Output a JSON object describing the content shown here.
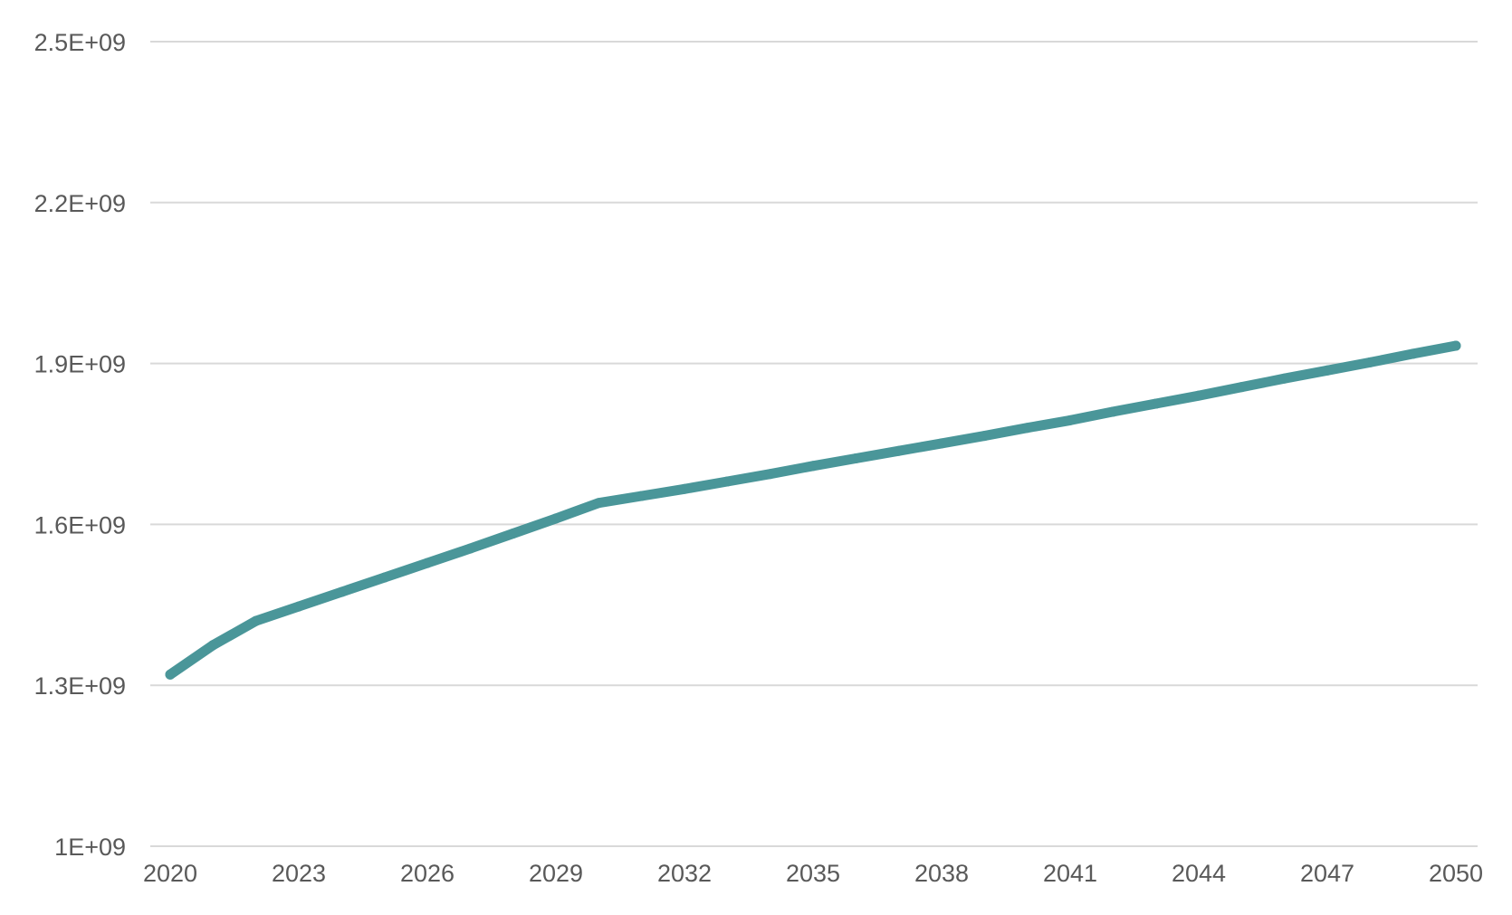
{
  "chart_data": {
    "type": "line",
    "title": "",
    "xlabel": "",
    "ylabel": "",
    "x": [
      2020,
      2021,
      2022,
      2023,
      2024,
      2025,
      2026,
      2027,
      2028,
      2029,
      2030,
      2031,
      2032,
      2033,
      2034,
      2035,
      2036,
      2037,
      2038,
      2039,
      2040,
      2041,
      2042,
      2043,
      2044,
      2045,
      2046,
      2047,
      2048,
      2049,
      2050
    ],
    "x_ticks": [
      2020,
      2023,
      2026,
      2029,
      2032,
      2035,
      2038,
      2041,
      2044,
      2047,
      2050
    ],
    "x_tick_labels": [
      "2020",
      "2023",
      "2026",
      "2029",
      "2032",
      "2035",
      "2038",
      "2041",
      "2044",
      "2047",
      "2050"
    ],
    "y_ticks": [
      1000000000,
      1300000000,
      1600000000,
      1900000000,
      2200000000,
      2500000000
    ],
    "y_tick_labels": [
      "1E+09",
      "1.3E+09",
      "1.6E+09",
      "1.9E+09",
      "2.2E+09",
      "2.5E+09"
    ],
    "ylim": [
      1000000000,
      2500000000
    ],
    "xlim": [
      2020,
      2050
    ],
    "grid": true,
    "legend": "none",
    "series": [
      {
        "color": "#4a9699",
        "values": [
          1320000000,
          1375000000,
          1420000000,
          1447000000,
          1474000000,
          1501000000,
          1528000000,
          1555000000,
          1583000000,
          1611000000,
          1640000000,
          1653000000,
          1666000000,
          1680000000,
          1694000000,
          1709000000,
          1723000000,
          1737000000,
          1751000000,
          1765000000,
          1780000000,
          1794000000,
          1810000000,
          1825000000,
          1840000000,
          1856000000,
          1872000000,
          1887000000,
          1902000000,
          1918000000,
          1933000000
        ]
      }
    ]
  }
}
